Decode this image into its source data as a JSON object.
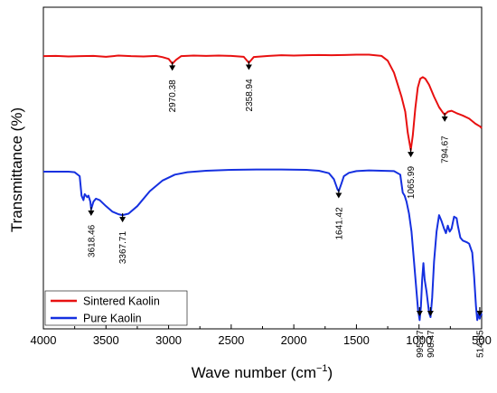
{
  "chart_data": {
    "type": "line",
    "xlabel": "Wave number (cm",
    "xlabel_sup": "−1",
    "xlabel_close": ")",
    "ylabel": "Transmittance (%)",
    "x_reversed": true,
    "xlim": [
      4000,
      500
    ],
    "ylim": [
      0,
      100
    ],
    "x_ticks": [
      4000,
      3500,
      3000,
      2500,
      2000,
      1500,
      1000,
      500
    ],
    "x_tick_labels": [
      "4000",
      "3500",
      "3000",
      "2500",
      "2000",
      "1500",
      "1000",
      "500"
    ],
    "y_ticks_shown": false,
    "grid": false,
    "legend_position": "bottom-left",
    "legend": [
      {
        "label": "Sintered Kaolin",
        "color": "#e81010"
      },
      {
        "label": "Pure Kaolin",
        "color": "#1530e0"
      }
    ],
    "series": [
      {
        "name": "Sintered Kaolin",
        "color": "#e81010",
        "points": [
          [
            4000,
            88.5
          ],
          [
            3900,
            88.6
          ],
          [
            3800,
            88.4
          ],
          [
            3700,
            88.5
          ],
          [
            3600,
            88.6
          ],
          [
            3500,
            88.3
          ],
          [
            3400,
            88.7
          ],
          [
            3300,
            88.5
          ],
          [
            3200,
            88.4
          ],
          [
            3100,
            88.6
          ],
          [
            3050,
            88.2
          ],
          [
            3000,
            87.6
          ],
          [
            2970,
            86.0
          ],
          [
            2940,
            87.3
          ],
          [
            2900,
            88.5
          ],
          [
            2800,
            88.7
          ],
          [
            2700,
            88.6
          ],
          [
            2600,
            88.7
          ],
          [
            2500,
            88.6
          ],
          [
            2400,
            88.3
          ],
          [
            2359,
            86.3
          ],
          [
            2320,
            88.2
          ],
          [
            2200,
            88.6
          ],
          [
            2100,
            88.8
          ],
          [
            2000,
            88.7
          ],
          [
            1900,
            88.8
          ],
          [
            1800,
            88.9
          ],
          [
            1700,
            88.8
          ],
          [
            1600,
            88.9
          ],
          [
            1500,
            89.0
          ],
          [
            1400,
            89.0
          ],
          [
            1300,
            88.6
          ],
          [
            1250,
            87.0
          ],
          [
            1200,
            83.0
          ],
          [
            1170,
            79.0
          ],
          [
            1140,
            75.0
          ],
          [
            1110,
            70.0
          ],
          [
            1090,
            63.0
          ],
          [
            1066,
            57.2
          ],
          [
            1050,
            62.0
          ],
          [
            1030,
            71.0
          ],
          [
            1010,
            78.0
          ],
          [
            990,
            81.0
          ],
          [
            970,
            81.5
          ],
          [
            950,
            81.0
          ],
          [
            920,
            79.0
          ],
          [
            880,
            75.0
          ],
          [
            840,
            71.5
          ],
          [
            810,
            69.7
          ],
          [
            795,
            69.0
          ],
          [
            770,
            70.0
          ],
          [
            740,
            70.3
          ],
          [
            700,
            69.5
          ],
          [
            650,
            68.7
          ],
          [
            600,
            67.7
          ],
          [
            550,
            66.0
          ],
          [
            510,
            65.0
          ],
          [
            500,
            64.5
          ]
        ]
      },
      {
        "name": "Pure Kaolin",
        "color": "#1530e0",
        "points": [
          [
            4000,
            50.0
          ],
          [
            3900,
            50.0
          ],
          [
            3800,
            50.0
          ],
          [
            3750,
            49.8
          ],
          [
            3710,
            48.5
          ],
          [
            3695,
            42.0
          ],
          [
            3680,
            40.5
          ],
          [
            3670,
            42.5
          ],
          [
            3650,
            41.5
          ],
          [
            3640,
            42.0
          ],
          [
            3625,
            40.0
          ],
          [
            3618,
            37.5
          ],
          [
            3600,
            40.0
          ],
          [
            3580,
            41.0
          ],
          [
            3550,
            40.5
          ],
          [
            3500,
            38.5
          ],
          [
            3450,
            36.7
          ],
          [
            3400,
            35.8
          ],
          [
            3368,
            35.5
          ],
          [
            3320,
            36.0
          ],
          [
            3250,
            38.5
          ],
          [
            3150,
            43.5
          ],
          [
            3050,
            47.0
          ],
          [
            2950,
            49.0
          ],
          [
            2850,
            49.8
          ],
          [
            2700,
            50.3
          ],
          [
            2500,
            50.6
          ],
          [
            2300,
            50.7
          ],
          [
            2100,
            50.7
          ],
          [
            1900,
            50.6
          ],
          [
            1800,
            50.3
          ],
          [
            1720,
            49.5
          ],
          [
            1680,
            47.5
          ],
          [
            1650,
            44.0
          ],
          [
            1641,
            43.5
          ],
          [
            1620,
            46.0
          ],
          [
            1600,
            48.5
          ],
          [
            1560,
            49.6
          ],
          [
            1500,
            50.2
          ],
          [
            1400,
            50.4
          ],
          [
            1300,
            50.3
          ],
          [
            1200,
            50.2
          ],
          [
            1150,
            49.0
          ],
          [
            1130,
            43.0
          ],
          [
            1115,
            42.0
          ],
          [
            1100,
            40.0
          ],
          [
            1080,
            36.0
          ],
          [
            1060,
            30.0
          ],
          [
            1040,
            20.0
          ],
          [
            1020,
            10.0
          ],
          [
            1008,
            4.0
          ],
          [
            995,
            0.5
          ],
          [
            985,
            5.0
          ],
          [
            975,
            14.0
          ],
          [
            965,
            19.5
          ],
          [
            955,
            14.0
          ],
          [
            940,
            10.0
          ],
          [
            920,
            3.0
          ],
          [
            908,
            1.5
          ],
          [
            895,
            8.0
          ],
          [
            880,
            20.0
          ],
          [
            860,
            30.0
          ],
          [
            840,
            35.5
          ],
          [
            820,
            33.5
          ],
          [
            800,
            31.0
          ],
          [
            785,
            29.5
          ],
          [
            770,
            32.0
          ],
          [
            755,
            30.0
          ],
          [
            740,
            31.0
          ],
          [
            720,
            35.0
          ],
          [
            700,
            34.5
          ],
          [
            690,
            32.0
          ],
          [
            670,
            28.0
          ],
          [
            650,
            27.0
          ],
          [
            620,
            26.5
          ],
          [
            600,
            26.0
          ],
          [
            575,
            23.0
          ],
          [
            560,
            15.0
          ],
          [
            545,
            5.0
          ],
          [
            535,
            0.5
          ],
          [
            525,
            2.5
          ],
          [
            515,
            1.0
          ],
          [
            505,
            3.0
          ],
          [
            500,
            2.0
          ]
        ]
      }
    ],
    "annotations": [
      {
        "series": "Sintered Kaolin",
        "x": 2970.38,
        "label": "2970.38"
      },
      {
        "series": "Sintered Kaolin",
        "x": 2358.94,
        "label": "2358.94"
      },
      {
        "series": "Sintered Kaolin",
        "x": 1065.99,
        "label": "1065.99"
      },
      {
        "series": "Sintered Kaolin",
        "x": 794.67,
        "label": "794.67"
      },
      {
        "series": "Pure Kaolin",
        "x": 3618.46,
        "label": "3618.46"
      },
      {
        "series": "Pure Kaolin",
        "x": 3367.71,
        "label": "3367.71"
      },
      {
        "series": "Pure Kaolin",
        "x": 1641.42,
        "label": "1641.42"
      },
      {
        "series": "Pure Kaolin",
        "x": 995.27,
        "label": "995.27"
      },
      {
        "series": "Pure Kaolin",
        "x": 908.47,
        "label": "908.47"
      },
      {
        "series": "Pure Kaolin",
        "x": 514.85,
        "label": "514.85"
      }
    ]
  }
}
